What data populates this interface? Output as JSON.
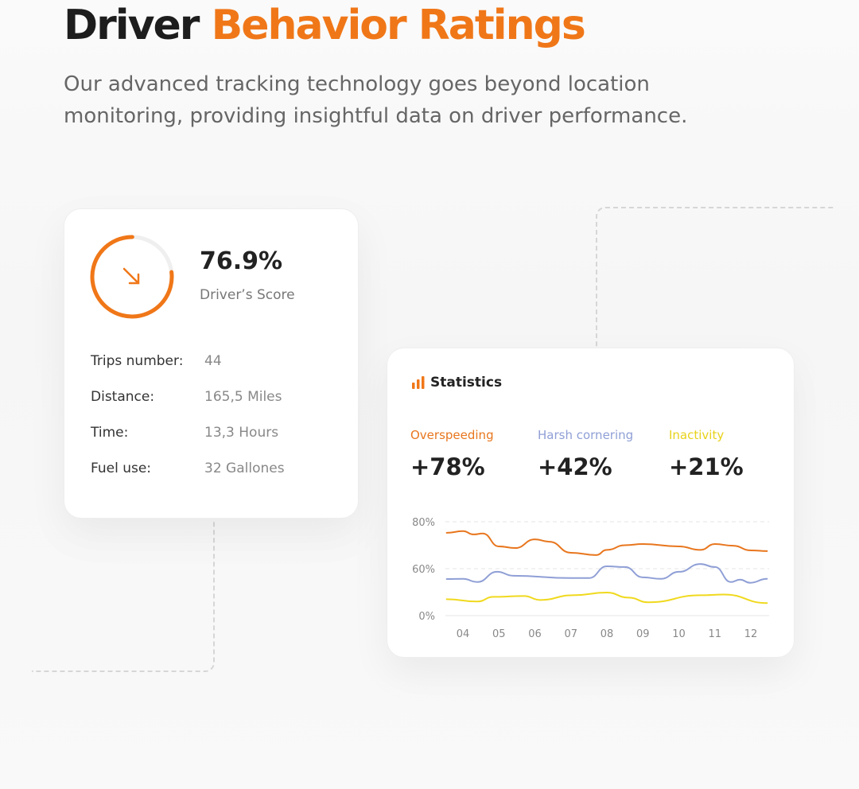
{
  "header": {
    "title_part1": "Driver",
    "title_part2": "Behavior Ratings",
    "subtitle": "Our advanced tracking technology goes beyond location monitoring, providing insightful data on driver performance."
  },
  "colors": {
    "accent": "#f07718",
    "overspeeding": "#e8761e",
    "harsh_cornering": "#8f9fd6",
    "inactivity": "#f0d91e"
  },
  "score_card": {
    "score": "76.9%",
    "score_fraction": 0.769,
    "score_label": "Driver’s Score",
    "trend_icon": "arrow-down-right-icon",
    "rows": [
      {
        "label": "Trips number:",
        "value": "44"
      },
      {
        "label": "Distance:",
        "value": "165,5 Miles"
      },
      {
        "label": "Time:",
        "value": "13,3 Hours"
      },
      {
        "label": "Fuel use:",
        "value": "32 Gallones"
      }
    ]
  },
  "stats_card": {
    "title": "Statistics",
    "icon": "bar-chart-icon",
    "metrics": [
      {
        "label": "Overspeeding",
        "value": "+78%"
      },
      {
        "label": "Harsh cornering",
        "value": "+42%"
      },
      {
        "label": "Inactivity",
        "value": "+21%"
      }
    ]
  },
  "chart_data": {
    "type": "line",
    "x_tick_labels": [
      "04",
      "05",
      "06",
      "07",
      "08",
      "09",
      "10",
      "11",
      "12"
    ],
    "y_tick_labels": [
      "0%",
      "60%",
      "80%"
    ],
    "y_ticks": [
      0,
      60,
      80
    ],
    "grid": true,
    "series": [
      {
        "name": "Overspeeding",
        "color": "#e8761e",
        "x": [
          3.55,
          4,
          4.3,
          4.55,
          5,
          5.45,
          6,
          6.4,
          7,
          7.7,
          8,
          8.5,
          9,
          10,
          10.6,
          11,
          11.5,
          12,
          12.45
        ],
        "y": [
          75.3,
          76,
          74.6,
          75,
          69.5,
          68.8,
          72.5,
          71.5,
          66.8,
          65.8,
          68,
          70,
          70.5,
          69.5,
          68,
          70.5,
          69.8,
          67.8,
          67.5
        ]
      },
      {
        "name": "Harsh cornering",
        "color": "#8f9fd6",
        "x": [
          3.55,
          4,
          4.4,
          4.95,
          5.4,
          7,
          7.5,
          8,
          8.5,
          9,
          9.5,
          10,
          10.6,
          11,
          11.45,
          11.7,
          11.98,
          12.45
        ],
        "y": [
          46.8,
          47,
          43,
          56,
          51,
          48,
          48,
          61,
          60.7,
          49,
          47,
          56,
          62,
          60.7,
          43,
          46,
          42,
          47
        ]
      },
      {
        "name": "Inactivity",
        "color": "#f0d91e",
        "x": [
          3.55,
          4.4,
          4.85,
          5.7,
          6.15,
          7.05,
          8,
          8.6,
          9.15,
          10.6,
          11.25,
          12.45
        ],
        "y": [
          21,
          18,
          24,
          25,
          20,
          26,
          29.5,
          23,
          17,
          26,
          27,
          16
        ]
      }
    ]
  }
}
